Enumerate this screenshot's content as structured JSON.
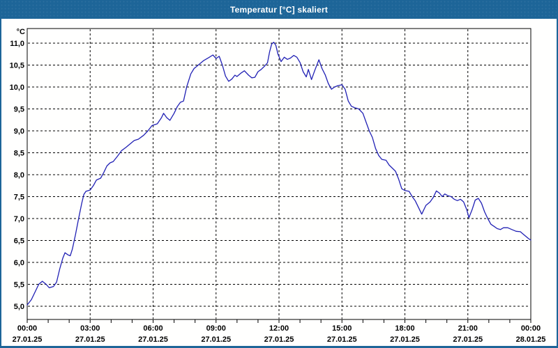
{
  "window": {
    "title": "Temperatur [°C] skaliert"
  },
  "colors": {
    "titlebar": "#1d6598",
    "window_border": "#1d6598",
    "plot_border": "#000000",
    "grid": "#000000",
    "line": "#2020b4",
    "background": "#fffffe",
    "text": "#000000"
  },
  "chart_data": {
    "type": "line",
    "title": "Temperatur [°C] skaliert",
    "ylabel": "°C",
    "unit_label": "°C",
    "ylim": [
      5.0,
      11.0
    ],
    "ytick_step": 0.5,
    "ytick_labels": [
      "11,0",
      "10,5",
      "10,0",
      "9,5",
      "9,0",
      "8,5",
      "8,0",
      "7,5",
      "7,0",
      "6,5",
      "6,0",
      "5,5",
      "5,0"
    ],
    "ytick_values": [
      11.0,
      10.5,
      10.0,
      9.5,
      9.0,
      8.5,
      8.0,
      7.5,
      7.0,
      6.5,
      6.0,
      5.5,
      5.0
    ],
    "xlim_hours": [
      0,
      24
    ],
    "x_major_step_hours": 3,
    "x_minor_tick_step_hours": 1,
    "xtick_times": [
      "00:00",
      "03:00",
      "06:00",
      "09:00",
      "12:00",
      "15:00",
      "18:00",
      "21:00",
      "00:00"
    ],
    "xtick_dates": [
      "27.01.25",
      "27.01.25",
      "27.01.25",
      "27.01.25",
      "27.01.25",
      "27.01.25",
      "27.01.25",
      "27.01.25",
      "28.01.25"
    ],
    "grid": "dashed",
    "legend": "none",
    "series": [
      {
        "name": "Temperatur",
        "color": "#2020b4",
        "points": [
          [
            0,
            5.03
          ],
          [
            0.2,
            5.15
          ],
          [
            0.35,
            5.3
          ],
          [
            0.55,
            5.5
          ],
          [
            0.72,
            5.57
          ],
          [
            0.9,
            5.5
          ],
          [
            1.05,
            5.42
          ],
          [
            1.25,
            5.45
          ],
          [
            1.4,
            5.55
          ],
          [
            1.55,
            5.85
          ],
          [
            1.7,
            6.1
          ],
          [
            1.8,
            6.22
          ],
          [
            1.95,
            6.17
          ],
          [
            2.05,
            6.15
          ],
          [
            2.15,
            6.3
          ],
          [
            2.3,
            6.63
          ],
          [
            2.45,
            7.0
          ],
          [
            2.6,
            7.35
          ],
          [
            2.7,
            7.55
          ],
          [
            2.8,
            7.62
          ],
          [
            3.0,
            7.65
          ],
          [
            3.15,
            7.75
          ],
          [
            3.3,
            7.88
          ],
          [
            3.5,
            7.92
          ],
          [
            3.65,
            8.05
          ],
          [
            3.8,
            8.2
          ],
          [
            3.95,
            8.27
          ],
          [
            4.1,
            8.3
          ],
          [
            4.3,
            8.42
          ],
          [
            4.5,
            8.55
          ],
          [
            4.7,
            8.62
          ],
          [
            4.9,
            8.7
          ],
          [
            5.1,
            8.78
          ],
          [
            5.3,
            8.81
          ],
          [
            5.55,
            8.9
          ],
          [
            5.75,
            9.0
          ],
          [
            5.95,
            9.12
          ],
          [
            6.2,
            9.16
          ],
          [
            6.4,
            9.3
          ],
          [
            6.5,
            9.4
          ],
          [
            6.65,
            9.3
          ],
          [
            6.8,
            9.24
          ],
          [
            7.0,
            9.4
          ],
          [
            7.15,
            9.55
          ],
          [
            7.3,
            9.65
          ],
          [
            7.45,
            9.68
          ],
          [
            7.6,
            10.0
          ],
          [
            7.8,
            10.3
          ],
          [
            7.95,
            10.42
          ],
          [
            8.15,
            10.5
          ],
          [
            8.4,
            10.6
          ],
          [
            8.65,
            10.67
          ],
          [
            8.85,
            10.73
          ],
          [
            9.0,
            10.65
          ],
          [
            9.15,
            10.7
          ],
          [
            9.3,
            10.5
          ],
          [
            9.45,
            10.25
          ],
          [
            9.6,
            10.13
          ],
          [
            9.75,
            10.18
          ],
          [
            9.9,
            10.27
          ],
          [
            10.0,
            10.24
          ],
          [
            10.2,
            10.32
          ],
          [
            10.35,
            10.37
          ],
          [
            10.55,
            10.27
          ],
          [
            10.7,
            10.21
          ],
          [
            10.85,
            10.22
          ],
          [
            11.0,
            10.35
          ],
          [
            11.15,
            10.4
          ],
          [
            11.3,
            10.47
          ],
          [
            11.45,
            10.55
          ],
          [
            11.55,
            10.8
          ],
          [
            11.65,
            10.98
          ],
          [
            11.75,
            11.02
          ],
          [
            11.85,
            10.95
          ],
          [
            11.95,
            10.75
          ],
          [
            12.1,
            10.58
          ],
          [
            12.25,
            10.68
          ],
          [
            12.4,
            10.63
          ],
          [
            12.55,
            10.66
          ],
          [
            12.7,
            10.72
          ],
          [
            12.85,
            10.68
          ],
          [
            13.0,
            10.56
          ],
          [
            13.15,
            10.35
          ],
          [
            13.3,
            10.23
          ],
          [
            13.4,
            10.4
          ],
          [
            13.55,
            10.17
          ],
          [
            13.7,
            10.37
          ],
          [
            13.9,
            10.62
          ],
          [
            14.05,
            10.42
          ],
          [
            14.2,
            10.28
          ],
          [
            14.35,
            10.08
          ],
          [
            14.5,
            9.95
          ],
          [
            14.65,
            10.0
          ],
          [
            14.8,
            10.03
          ],
          [
            15.0,
            10.05
          ],
          [
            15.15,
            9.95
          ],
          [
            15.3,
            9.68
          ],
          [
            15.45,
            9.56
          ],
          [
            15.6,
            9.53
          ],
          [
            15.8,
            9.5
          ],
          [
            16.0,
            9.4
          ],
          [
            16.15,
            9.2
          ],
          [
            16.3,
            9.0
          ],
          [
            16.45,
            8.85
          ],
          [
            16.6,
            8.6
          ],
          [
            16.75,
            8.44
          ],
          [
            16.9,
            8.35
          ],
          [
            17.1,
            8.33
          ],
          [
            17.25,
            8.22
          ],
          [
            17.4,
            8.15
          ],
          [
            17.55,
            8.08
          ],
          [
            17.7,
            7.9
          ],
          [
            17.85,
            7.68
          ],
          [
            18.0,
            7.64
          ],
          [
            18.2,
            7.62
          ],
          [
            18.35,
            7.5
          ],
          [
            18.5,
            7.4
          ],
          [
            18.65,
            7.25
          ],
          [
            18.8,
            7.1
          ],
          [
            19.0,
            7.3
          ],
          [
            19.2,
            7.38
          ],
          [
            19.35,
            7.48
          ],
          [
            19.5,
            7.63
          ],
          [
            19.65,
            7.58
          ],
          [
            19.78,
            7.5
          ],
          [
            19.9,
            7.56
          ],
          [
            20.05,
            7.52
          ],
          [
            20.2,
            7.5
          ],
          [
            20.35,
            7.44
          ],
          [
            20.5,
            7.41
          ],
          [
            20.65,
            7.44
          ],
          [
            20.8,
            7.38
          ],
          [
            20.95,
            7.2
          ],
          [
            21.05,
            7.02
          ],
          [
            21.2,
            7.2
          ],
          [
            21.35,
            7.42
          ],
          [
            21.5,
            7.46
          ],
          [
            21.65,
            7.35
          ],
          [
            21.8,
            7.15
          ],
          [
            21.95,
            7.0
          ],
          [
            22.1,
            6.87
          ],
          [
            22.25,
            6.82
          ],
          [
            22.4,
            6.77
          ],
          [
            22.55,
            6.75
          ],
          [
            22.7,
            6.79
          ],
          [
            22.9,
            6.79
          ],
          [
            23.1,
            6.75
          ],
          [
            23.3,
            6.71
          ],
          [
            23.5,
            6.7
          ],
          [
            23.65,
            6.64
          ],
          [
            23.8,
            6.58
          ],
          [
            23.9,
            6.54
          ],
          [
            24,
            6.51
          ]
        ]
      }
    ]
  }
}
